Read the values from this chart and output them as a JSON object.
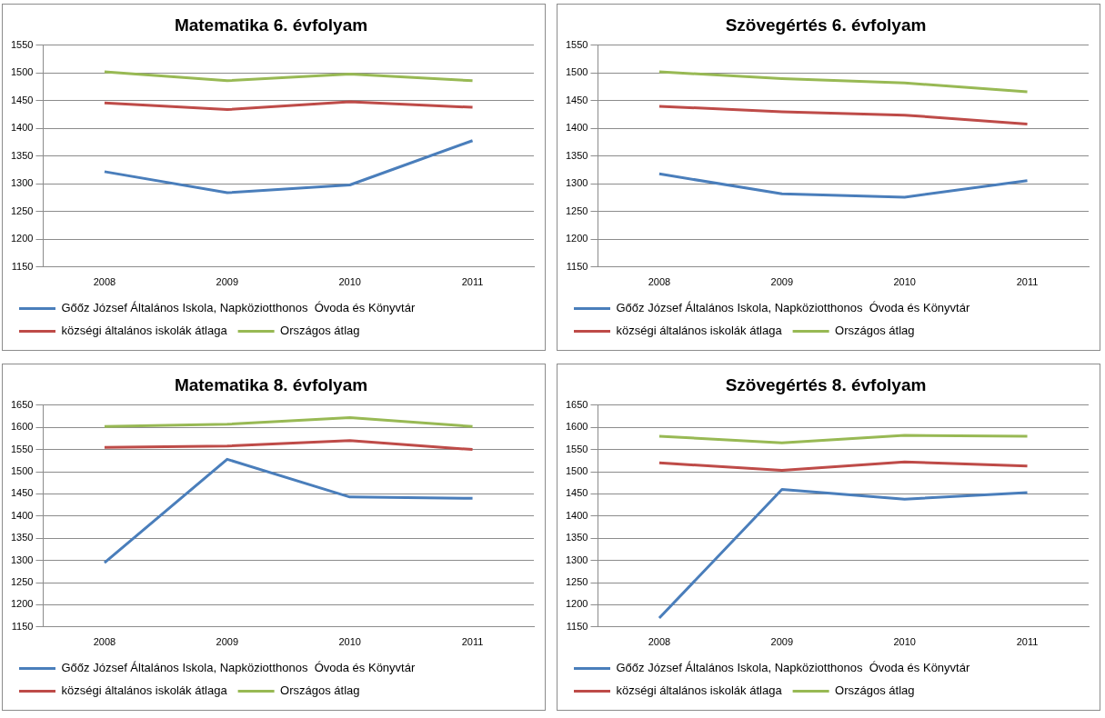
{
  "chart_data": [
    {
      "type": "line",
      "title": "Matematika 6. évfolyam",
      "categories": [
        "2008",
        "2009",
        "2010",
        "2011"
      ],
      "ylim": [
        1150,
        1550
      ],
      "yticks": [
        1150,
        1200,
        1250,
        1300,
        1350,
        1400,
        1450,
        1500,
        1550
      ],
      "grid": "y",
      "legend": "bottom",
      "marker": "none",
      "series": [
        {
          "name": "Gőőz József Általános Iskola, Napköziotthonos  Óvoda és Könyvtár",
          "color": "#4a7ebb",
          "values": [
            1322,
            1284,
            1298,
            1378
          ]
        },
        {
          "name": "községi általános iskolák átlaga",
          "color": "#be4b48",
          "values": [
            1446,
            1434,
            1448,
            1438
          ]
        },
        {
          "name": "Országos átlag",
          "color": "#98b954",
          "values": [
            1502,
            1486,
            1498,
            1486
          ]
        }
      ]
    },
    {
      "type": "line",
      "title": "Szövegértés 6. évfolyam",
      "categories": [
        "2008",
        "2009",
        "2010",
        "2011"
      ],
      "ylim": [
        1150,
        1550
      ],
      "yticks": [
        1150,
        1200,
        1250,
        1300,
        1350,
        1400,
        1450,
        1500,
        1550
      ],
      "grid": "y",
      "legend": "bottom",
      "marker": "none",
      "series": [
        {
          "name": "Gőőz József Általános Iskola, Napköziotthonos  Óvoda és Könyvtár",
          "color": "#4a7ebb",
          "values": [
            1318,
            1282,
            1276,
            1306
          ]
        },
        {
          "name": "községi általános iskolák átlaga",
          "color": "#be4b48",
          "values": [
            1440,
            1430,
            1424,
            1408
          ]
        },
        {
          "name": "Országos átlag",
          "color": "#98b954",
          "values": [
            1502,
            1490,
            1482,
            1466
          ]
        }
      ]
    },
    {
      "type": "line",
      "title": "Matematika 8. évfolyam",
      "categories": [
        "2008",
        "2009",
        "2010",
        "2011"
      ],
      "ylim": [
        1150,
        1650
      ],
      "yticks": [
        1150,
        1200,
        1250,
        1300,
        1350,
        1400,
        1450,
        1500,
        1550,
        1600,
        1650
      ],
      "grid": "y",
      "legend": "bottom",
      "marker": "none",
      "series": [
        {
          "name": "Gőőz József Általános Iskola, Napköziotthonos  Óvoda és Könyvtár",
          "color": "#4a7ebb",
          "values": [
            1295,
            1528,
            1443,
            1440
          ]
        },
        {
          "name": "községi általános iskolák átlaga",
          "color": "#be4b48",
          "values": [
            1555,
            1558,
            1570,
            1550
          ]
        },
        {
          "name": "Országos átlag",
          "color": "#98b954",
          "values": [
            1602,
            1607,
            1622,
            1602
          ]
        }
      ]
    },
    {
      "type": "line",
      "title": "Szövegértés 8. évfolyam",
      "categories": [
        "2008",
        "2009",
        "2010",
        "2011"
      ],
      "ylim": [
        1150,
        1650
      ],
      "yticks": [
        1150,
        1200,
        1250,
        1300,
        1350,
        1400,
        1450,
        1500,
        1550,
        1600,
        1650
      ],
      "grid": "y",
      "legend": "bottom",
      "marker": "none",
      "series": [
        {
          "name": "Gőőz József Általános Iskola, Napköziotthonos  Óvoda és Könyvtár",
          "color": "#4a7ebb",
          "values": [
            1170,
            1460,
            1438,
            1453
          ]
        },
        {
          "name": "községi általános iskolák átlaga",
          "color": "#be4b48",
          "values": [
            1520,
            1503,
            1522,
            1513
          ]
        },
        {
          "name": "Országos átlag",
          "color": "#98b954",
          "values": [
            1580,
            1565,
            1582,
            1580
          ]
        }
      ]
    }
  ]
}
